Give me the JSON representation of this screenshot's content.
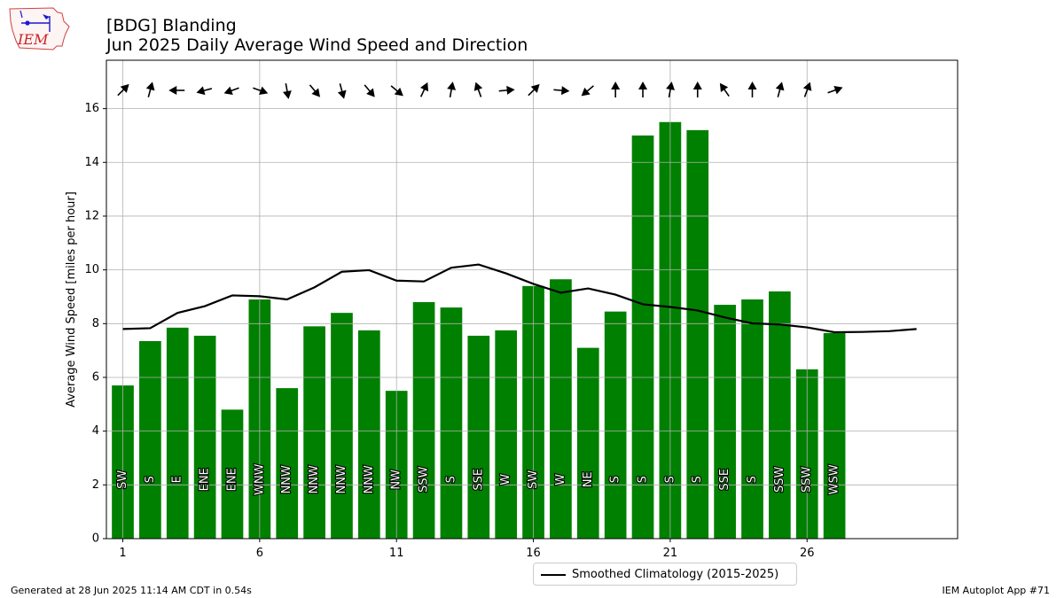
{
  "header": {
    "title_line1": "[BDG] Blanding",
    "title_line2": "Jun 2025 Daily Average Wind Speed and Direction"
  },
  "logo": {
    "text": "IEM",
    "icon": "iowa-state-outline-icon"
  },
  "footer": {
    "generated": "Generated at 28 Jun 2025 11:14 AM CDT in 0.54s",
    "app": "IEM Autoplot App #71"
  },
  "colors": {
    "bars": "#008000",
    "climatology": "#000000",
    "grid": "#b0b0b0"
  },
  "chart_data": {
    "type": "bar",
    "ylabel": "Average Wind Speed [miles per hour]",
    "ylim": [
      0,
      17.8
    ],
    "xlim": [
      0.4,
      31.5
    ],
    "yticks": [
      0,
      2,
      4,
      6,
      8,
      10,
      12,
      14,
      16
    ],
    "xticks": [
      1,
      6,
      11,
      16,
      21,
      26
    ],
    "grid": true,
    "legend_placement": "bottom-center",
    "days": [
      1,
      2,
      3,
      4,
      5,
      6,
      7,
      8,
      9,
      10,
      11,
      12,
      13,
      14,
      15,
      16,
      17,
      18,
      19,
      20,
      21,
      22,
      23,
      24,
      25,
      26,
      27
    ],
    "speeds": [
      5.7,
      7.35,
      7.85,
      7.55,
      4.8,
      8.9,
      5.6,
      7.9,
      8.4,
      7.75,
      5.5,
      8.8,
      8.6,
      7.55,
      7.75,
      9.4,
      9.65,
      7.1,
      8.45,
      15.0,
      15.5,
      15.2,
      8.7,
      8.9,
      9.2,
      6.3,
      7.65
    ],
    "directions": [
      "SW",
      "S",
      "E",
      "ENE",
      "ENE",
      "WNW",
      "NNW",
      "NNW",
      "NNW",
      "NNW",
      "NW",
      "SSW",
      "S",
      "SSE",
      "W",
      "SW",
      "W",
      "NE",
      "S",
      "S",
      "S",
      "S",
      "SSE",
      "S",
      "SSW",
      "SSW",
      "WSW"
    ],
    "arrow_degrees": [
      225,
      195,
      90,
      75,
      70,
      290,
      350,
      320,
      345,
      320,
      310,
      205,
      190,
      160,
      265,
      225,
      275,
      50,
      180,
      180,
      190,
      180,
      145,
      180,
      195,
      200,
      250
    ],
    "climatology": {
      "name": "Smoothed Climatology (2015-2025)",
      "days": [
        1,
        2,
        3,
        4,
        5,
        6,
        7,
        8,
        9,
        10,
        11,
        12,
        13,
        14,
        15,
        16,
        17,
        18,
        19,
        20,
        21,
        22,
        23,
        24,
        25,
        26,
        27,
        28,
        29,
        30
      ],
      "values": [
        7.8,
        7.83,
        8.4,
        8.65,
        9.05,
        9.02,
        8.9,
        9.35,
        9.93,
        9.99,
        9.6,
        9.57,
        10.08,
        10.2,
        9.87,
        9.48,
        9.15,
        9.31,
        9.08,
        8.72,
        8.62,
        8.49,
        8.23,
        8.01,
        7.97,
        7.86,
        7.68,
        7.69,
        7.72,
        7.8
      ]
    }
  }
}
